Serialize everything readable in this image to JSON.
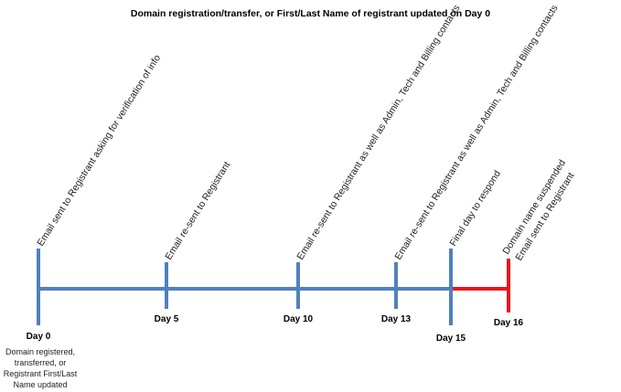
{
  "title": "Domain registration/transfer, or First/Last Name of registrant updated on Day 0",
  "colors": {
    "timeline": "#4f81bd",
    "suspension": "#e8141c"
  },
  "days": [
    {
      "label": "Day 0",
      "note_lines": [
        "Email sent to Registrant asking for verification of info"
      ]
    },
    {
      "label": "Day 5",
      "note_lines": [
        "Email re-sent to Registrant"
      ]
    },
    {
      "label": "Day 10",
      "note_lines": [
        "Email re-sent to Registrant as well as Admin, Tech and Billing contacts"
      ]
    },
    {
      "label": "Day 13",
      "note_lines": [
        "Email re-sent to Registrant as well as Admin, Tech and Billing contacts"
      ]
    },
    {
      "label": "Day 15",
      "note_lines": [
        "Final day to respond"
      ]
    },
    {
      "label": "Day 16",
      "note_lines": [
        "Domain name suspended",
        "Email sent to Registrant"
      ]
    }
  ],
  "day0_caption": [
    "Domain registered,",
    "transferred, or",
    "Registrant First/Last",
    "Name updated"
  ]
}
